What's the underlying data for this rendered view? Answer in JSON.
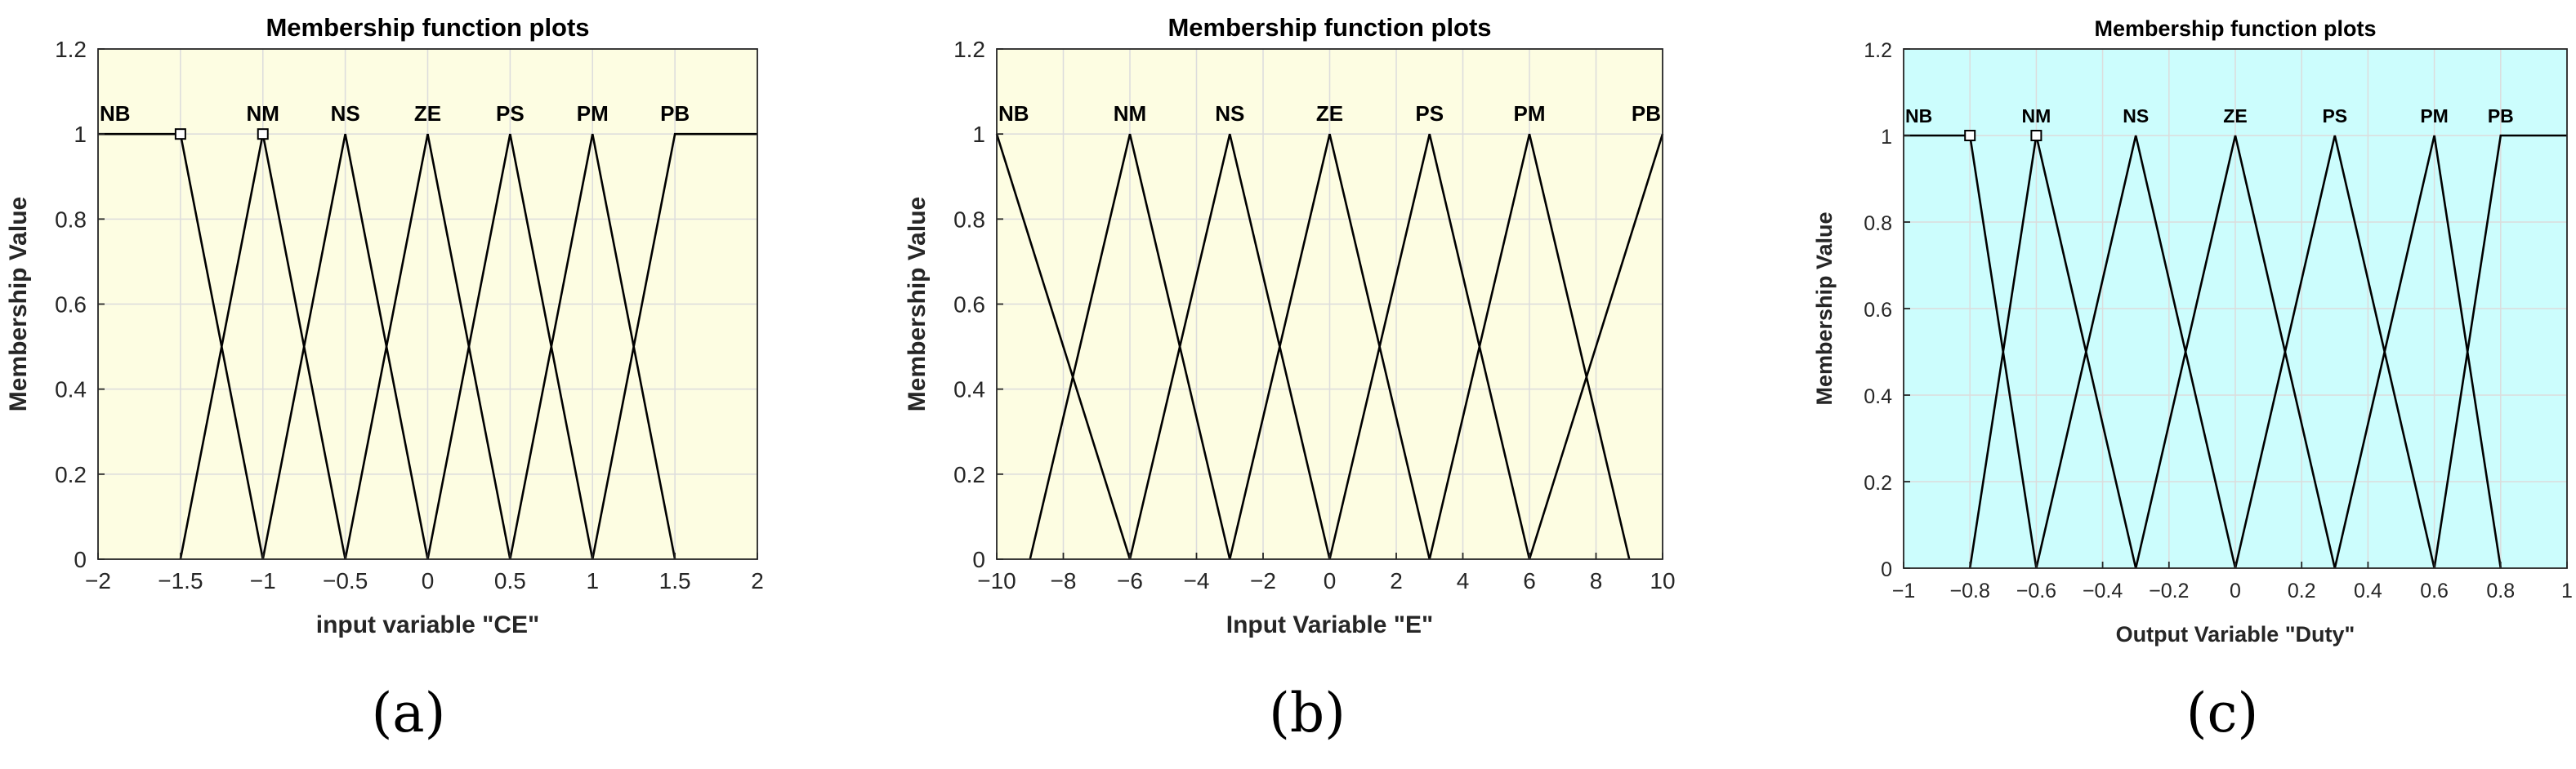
{
  "chart_data": [
    {
      "type": "line",
      "panel_label": "(a)",
      "title": "Membership function plots",
      "xlabel": "input variable \"CE\"",
      "ylabel": "Membership Value",
      "xlim": [
        -2,
        2
      ],
      "ylim": [
        0,
        1.2
      ],
      "xticks": [
        -2,
        -1.5,
        -1,
        -0.5,
        0,
        0.5,
        1,
        1.5,
        2
      ],
      "xtick_labels": [
        "−2",
        "−1.5",
        "−1",
        "−0.5",
        "0",
        "0.5",
        "1",
        "1.5",
        "2"
      ],
      "yticks": [
        0,
        0.2,
        0.4,
        0.6,
        0.8,
        1,
        1.2
      ],
      "ytick_labels": [
        "0",
        "0.2",
        "0.4",
        "0.6",
        "0.8",
        "1",
        "1.2"
      ],
      "grid": true,
      "background": "#fdfde2",
      "line_color": "#000000",
      "series": [
        {
          "name": "NB",
          "x": [
            -2,
            -1.5,
            -1
          ],
          "y": [
            1,
            1,
            0
          ],
          "marker": [
            -1.5,
            1
          ]
        },
        {
          "name": "NM",
          "x": [
            -1.5,
            -1,
            -0.5
          ],
          "y": [
            0,
            1,
            0
          ],
          "marker": [
            -1,
            1
          ]
        },
        {
          "name": "NS",
          "x": [
            -1,
            -0.5,
            0
          ],
          "y": [
            0,
            1,
            0
          ]
        },
        {
          "name": "ZE",
          "x": [
            -0.5,
            0,
            0.5
          ],
          "y": [
            0,
            1,
            0
          ]
        },
        {
          "name": "PS",
          "x": [
            0,
            0.5,
            1
          ],
          "y": [
            0,
            1,
            0
          ]
        },
        {
          "name": "PM",
          "x": [
            0.5,
            1,
            1.5
          ],
          "y": [
            0,
            1,
            0
          ]
        },
        {
          "name": "PB",
          "x": [
            1,
            1.5,
            2
          ],
          "y": [
            0,
            1,
            1
          ]
        }
      ]
    },
    {
      "type": "line",
      "panel_label": "(b)",
      "title": "Membership function plots",
      "xlabel": "Input Variable \"E\"",
      "ylabel": "Membership Value",
      "xlim": [
        -10,
        10
      ],
      "ylim": [
        0,
        1.2
      ],
      "xticks": [
        -10,
        -8,
        -6,
        -4,
        -2,
        0,
        2,
        4,
        6,
        8,
        10
      ],
      "xtick_labels": [
        "−10",
        "−8",
        "−6",
        "−4",
        "−2",
        "0",
        "2",
        "4",
        "6",
        "8",
        "10"
      ],
      "yticks": [
        0,
        0.2,
        0.4,
        0.6,
        0.8,
        1,
        1.2
      ],
      "ytick_labels": [
        "0",
        "0.2",
        "0.4",
        "0.6",
        "0.8",
        "1",
        "1.2"
      ],
      "grid": true,
      "background": "#fdfde2",
      "line_color": "#000000",
      "series": [
        {
          "name": "NB",
          "x": [
            -10,
            -6
          ],
          "y": [
            1,
            0
          ]
        },
        {
          "name": "NM",
          "x": [
            -9,
            -6,
            -3
          ],
          "y": [
            0,
            1,
            0
          ]
        },
        {
          "name": "NS",
          "x": [
            -6,
            -3,
            0
          ],
          "y": [
            0,
            1,
            0
          ]
        },
        {
          "name": "ZE",
          "x": [
            -3,
            0,
            3
          ],
          "y": [
            0,
            1,
            0
          ]
        },
        {
          "name": "PS",
          "x": [
            0,
            3,
            6
          ],
          "y": [
            0,
            1,
            0
          ]
        },
        {
          "name": "PM",
          "x": [
            3,
            6,
            9
          ],
          "y": [
            0,
            1,
            0
          ]
        },
        {
          "name": "PB",
          "x": [
            6,
            10
          ],
          "y": [
            0,
            1
          ]
        }
      ]
    },
    {
      "type": "line",
      "panel_label": "(c)",
      "title": "Membership function plots",
      "xlabel": "Output Variable \"Duty\"",
      "ylabel": "Membership Value",
      "xlim": [
        -1,
        1
      ],
      "ylim": [
        0,
        1.2
      ],
      "xticks": [
        -1,
        -0.8,
        -0.6,
        -0.4,
        -0.2,
        0,
        0.2,
        0.4,
        0.6,
        0.8,
        1
      ],
      "xtick_labels": [
        "−1",
        "−0.8",
        "−0.6",
        "−0.4",
        "−0.2",
        "0",
        "0.2",
        "0.4",
        "0.6",
        "0.8",
        "1"
      ],
      "yticks": [
        0,
        0.2,
        0.4,
        0.6,
        0.8,
        1,
        1.2
      ],
      "ytick_labels": [
        "0",
        "0.2",
        "0.4",
        "0.6",
        "0.8",
        "1",
        "1.2"
      ],
      "grid": true,
      "background": "#ccfdfd",
      "line_color": "#000000",
      "series": [
        {
          "name": "NB",
          "x": [
            -1,
            -0.8,
            -0.6
          ],
          "y": [
            1,
            1,
            0
          ],
          "marker": [
            -0.8,
            1
          ]
        },
        {
          "name": "NM",
          "x": [
            -0.8,
            -0.6,
            -0.3
          ],
          "y": [
            0,
            1,
            0
          ],
          "marker": [
            -0.6,
            1
          ]
        },
        {
          "name": "NS",
          "x": [
            -0.6,
            -0.3,
            0
          ],
          "y": [
            0,
            1,
            0
          ]
        },
        {
          "name": "ZE",
          "x": [
            -0.3,
            0,
            0.3
          ],
          "y": [
            0,
            1,
            0
          ]
        },
        {
          "name": "PS",
          "x": [
            0,
            0.3,
            0.6
          ],
          "y": [
            0,
            1,
            0
          ]
        },
        {
          "name": "PM",
          "x": [
            0.3,
            0.6,
            0.8
          ],
          "y": [
            0,
            1,
            0
          ]
        },
        {
          "name": "PB",
          "x": [
            0.6,
            0.8,
            1
          ],
          "y": [
            0,
            1,
            1
          ]
        }
      ]
    }
  ]
}
